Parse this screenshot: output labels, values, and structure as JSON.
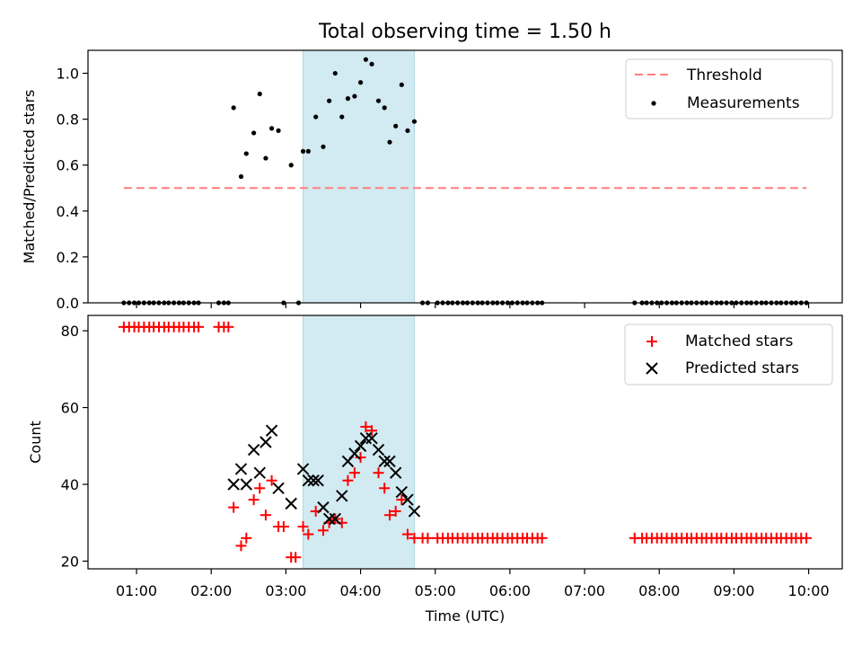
{
  "title": "Total observing time = 1.50 h",
  "chart_data": [
    {
      "type": "scatter",
      "ylabel": "Matched/Predicted stars",
      "ylim": [
        0,
        1.1
      ],
      "yticks": [
        0.0,
        0.2,
        0.4,
        0.6,
        0.8,
        1.0
      ],
      "ytick_labels": [
        "0.0",
        "0.2",
        "0.4",
        "0.6",
        "0.8",
        "1.0"
      ],
      "xlim_hours": [
        0.35,
        10.45
      ],
      "legend_position": "top-right",
      "highlight_span_hours": [
        3.23,
        4.72
      ],
      "threshold": {
        "name": "Threshold",
        "value": 0.5,
        "x_range_hours": [
          0.83,
          9.97
        ],
        "color": "#ff7f7f"
      },
      "series": [
        {
          "name": "Measurements",
          "color": "#000000",
          "x_hours": [
            0.83,
            0.9,
            0.97,
            1.03,
            1.1,
            1.17,
            1.23,
            1.3,
            1.37,
            1.43,
            1.5,
            1.57,
            1.63,
            1.7,
            1.77,
            1.83,
            2.1,
            2.17,
            2.23,
            2.3,
            2.4,
            2.47,
            2.57,
            2.65,
            2.73,
            2.81,
            2.9,
            2.97,
            3.07,
            3.17,
            3.23,
            3.3,
            3.4,
            3.5,
            3.58,
            3.66,
            3.75,
            3.83,
            3.92,
            4.0,
            4.07,
            4.15,
            4.24,
            4.32,
            4.39,
            4.47,
            4.55,
            4.63,
            4.72,
            4.83,
            4.9,
            5.03,
            5.1,
            5.17,
            5.23,
            5.3,
            5.37,
            5.43,
            5.5,
            5.57,
            5.63,
            5.7,
            5.77,
            5.83,
            5.9,
            5.97,
            6.03,
            6.1,
            6.17,
            6.23,
            6.3,
            6.37,
            6.43,
            7.67,
            7.77,
            7.83,
            7.9,
            7.97,
            8.03,
            8.1,
            8.17,
            8.23,
            8.3,
            8.37,
            8.43,
            8.5,
            8.57,
            8.63,
            8.7,
            8.77,
            8.83,
            8.9,
            8.97,
            9.03,
            9.1,
            9.17,
            9.23,
            9.3,
            9.37,
            9.43,
            9.5,
            9.57,
            9.63,
            9.7,
            9.77,
            9.83,
            9.9,
            9.97
          ],
          "y": [
            0,
            0,
            0,
            0,
            0,
            0,
            0,
            0,
            0,
            0,
            0,
            0,
            0,
            0,
            0,
            0,
            0,
            0,
            0,
            0.85,
            0.55,
            0.65,
            0.74,
            0.91,
            0.63,
            0.76,
            0.75,
            0,
            0.6,
            0,
            0.66,
            0.66,
            0.81,
            0.68,
            0.88,
            1.0,
            0.81,
            0.89,
            0.9,
            0.96,
            1.06,
            1.04,
            0.88,
            0.85,
            0.7,
            0.77,
            0.95,
            0.75,
            0.79,
            0,
            0,
            0,
            0,
            0,
            0,
            0,
            0,
            0,
            0,
            0,
            0,
            0,
            0,
            0,
            0,
            0,
            0,
            0,
            0,
            0,
            0,
            0,
            0,
            0,
            0,
            0,
            0,
            0,
            0,
            0,
            0,
            0,
            0,
            0,
            0,
            0,
            0,
            0,
            0,
            0,
            0,
            0,
            0,
            0,
            0,
            0,
            0,
            0,
            0,
            0,
            0,
            0,
            0,
            0,
            0,
            0,
            0,
            0
          ]
        }
      ]
    },
    {
      "type": "scatter",
      "xlabel": "Time (UTC)",
      "ylabel": "Count",
      "ylim": [
        18,
        84
      ],
      "yticks": [
        20,
        40,
        60,
        80
      ],
      "ytick_labels": [
        "20",
        "40",
        "60",
        "80"
      ],
      "xlim_hours": [
        0.35,
        10.45
      ],
      "xticks_hours": [
        1,
        2,
        3,
        4,
        5,
        6,
        7,
        8,
        9,
        10
      ],
      "xtick_labels": [
        "01:00",
        "02:00",
        "03:00",
        "04:00",
        "05:00",
        "06:00",
        "07:00",
        "08:00",
        "09:00",
        "10:00"
      ],
      "legend_position": "top-right",
      "highlight_span_hours": [
        3.23,
        4.72
      ],
      "series": [
        {
          "name": "Matched stars",
          "marker": "+",
          "color": "#ff0000",
          "x_hours": [
            0.83,
            0.9,
            0.97,
            1.03,
            1.1,
            1.17,
            1.23,
            1.3,
            1.37,
            1.43,
            1.5,
            1.57,
            1.63,
            1.7,
            1.77,
            1.83,
            2.1,
            2.17,
            2.23,
            2.3,
            2.4,
            2.47,
            2.57,
            2.65,
            2.73,
            2.81,
            2.9,
            2.97,
            3.07,
            3.13,
            3.23,
            3.3,
            3.4,
            3.5,
            3.58,
            3.66,
            3.75,
            3.83,
            3.92,
            4.0,
            4.07,
            4.15,
            4.24,
            4.32,
            4.39,
            4.47,
            4.55,
            4.63,
            4.72,
            4.83,
            4.9,
            5.03,
            5.1,
            5.17,
            5.23,
            5.3,
            5.37,
            5.43,
            5.5,
            5.57,
            5.63,
            5.7,
            5.77,
            5.83,
            5.9,
            5.97,
            6.03,
            6.1,
            6.17,
            6.23,
            6.3,
            6.37,
            6.43,
            7.67,
            7.77,
            7.83,
            7.9,
            7.97,
            8.03,
            8.1,
            8.17,
            8.23,
            8.3,
            8.37,
            8.43,
            8.5,
            8.57,
            8.63,
            8.7,
            8.77,
            8.83,
            8.9,
            8.97,
            9.03,
            9.1,
            9.17,
            9.23,
            9.3,
            9.37,
            9.43,
            9.5,
            9.57,
            9.63,
            9.7,
            9.77,
            9.83,
            9.9,
            9.97
          ],
          "y": [
            81,
            81,
            81,
            81,
            81,
            81,
            81,
            81,
            81,
            81,
            81,
            81,
            81,
            81,
            81,
            81,
            81,
            81,
            81,
            34,
            24,
            26,
            36,
            39,
            32,
            41,
            29,
            29,
            21,
            21,
            29,
            27,
            33,
            28,
            30,
            31,
            30,
            41,
            43,
            47,
            55,
            54,
            43,
            39,
            32,
            33,
            36,
            27,
            26,
            26,
            26,
            26,
            26,
            26,
            26,
            26,
            26,
            26,
            26,
            26,
            26,
            26,
            26,
            26,
            26,
            26,
            26,
            26,
            26,
            26,
            26,
            26,
            26,
            26,
            26,
            26,
            26,
            26,
            26,
            26,
            26,
            26,
            26,
            26,
            26,
            26,
            26,
            26,
            26,
            26,
            26,
            26,
            26,
            26,
            26,
            26,
            26,
            26,
            26,
            26,
            26,
            26,
            26,
            26,
            26,
            26,
            26,
            26
          ]
        },
        {
          "name": "Predicted stars",
          "marker": "x",
          "color": "#000000",
          "x_hours": [
            2.3,
            2.4,
            2.47,
            2.57,
            2.65,
            2.73,
            2.81,
            2.9,
            3.07,
            3.23,
            3.3,
            3.37,
            3.43,
            3.5,
            3.58,
            3.66,
            3.75,
            3.83,
            3.92,
            4.0,
            4.07,
            4.15,
            4.24,
            4.32,
            4.39,
            4.47,
            4.55,
            4.63,
            4.72
          ],
          "y": [
            40,
            44,
            40,
            49,
            43,
            51,
            54,
            39,
            35,
            44,
            41,
            41,
            41,
            34,
            31,
            31,
            37,
            46,
            48,
            50,
            52,
            52,
            49,
            46,
            46,
            43,
            38,
            36,
            33
          ]
        }
      ]
    }
  ]
}
